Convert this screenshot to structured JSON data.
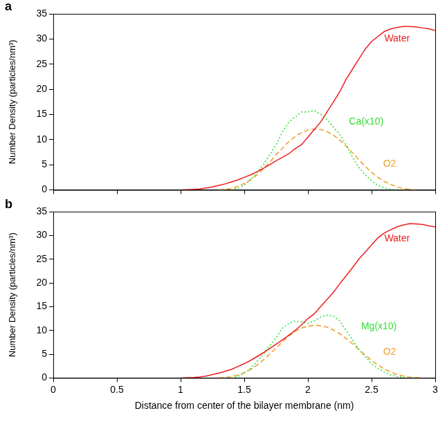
{
  "chart_data": [
    {
      "type": "line",
      "panel_label": "a",
      "x": [
        0,
        0.05,
        0.1,
        0.15,
        0.2,
        0.25,
        0.3,
        0.35,
        0.4,
        0.45,
        0.5,
        0.55,
        0.6,
        0.65,
        0.7,
        0.75,
        0.8,
        0.85,
        0.9,
        0.95,
        1,
        1.05,
        1.1,
        1.15,
        1.2,
        1.25,
        1.3,
        1.35,
        1.4,
        1.45,
        1.5,
        1.55,
        1.6,
        1.65,
        1.7,
        1.75,
        1.8,
        1.85,
        1.9,
        1.95,
        2,
        2.05,
        2.1,
        2.15,
        2.2,
        2.25,
        2.3,
        2.35,
        2.4,
        2.45,
        2.5,
        2.55,
        2.6,
        2.65,
        2.7,
        2.75,
        2.8,
        2.85,
        2.9,
        2.95,
        3
      ],
      "xlim": [
        0,
        3
      ],
      "xticks": [
        0,
        0.5,
        1,
        1.5,
        2,
        2.5,
        3
      ],
      "ylim": [
        0,
        35
      ],
      "yticks": [
        0,
        5,
        10,
        15,
        20,
        25,
        30,
        35
      ],
      "ylabel": "Number Density (particles/nm³)",
      "grid": false,
      "tick_labels": "y",
      "series": [
        {
          "name": "Water",
          "color": "#ee1c1c",
          "line_style": "solid",
          "marker": "none",
          "values": [
            null,
            null,
            null,
            null,
            null,
            null,
            null,
            null,
            null,
            null,
            null,
            null,
            null,
            null,
            null,
            null,
            null,
            null,
            null,
            null,
            0,
            0.05,
            0.1,
            0.2,
            0.4,
            0.6,
            0.9,
            1.2,
            1.6,
            2.0,
            2.5,
            3.0,
            3.6,
            4.3,
            5.0,
            5.8,
            6.5,
            7.2,
            8.2,
            9.0,
            10.5,
            12,
            13.5,
            15.5,
            17.5,
            19.5,
            22,
            24,
            26,
            28,
            29.5,
            30.5,
            31.5,
            32,
            32.3,
            32.5,
            32.5,
            32.4,
            32.2,
            32,
            31.7
          ]
        },
        {
          "name": "Ca(x10)",
          "color": "#33dd33",
          "line_style": "dotted",
          "marker": "none",
          "values": [
            null,
            null,
            null,
            null,
            null,
            null,
            null,
            null,
            null,
            null,
            null,
            null,
            null,
            null,
            null,
            null,
            null,
            null,
            null,
            null,
            null,
            null,
            null,
            null,
            null,
            null,
            null,
            null,
            0,
            0.3,
            1,
            2,
            3.5,
            5,
            7,
            9,
            11.5,
            13.5,
            14.5,
            15.5,
            15.5,
            15.8,
            15,
            14,
            12.5,
            11,
            9,
            6.5,
            4.5,
            3,
            1.8,
            0.9,
            0.4,
            0.1,
            0,
            null,
            null,
            null,
            null,
            null,
            null
          ]
        },
        {
          "name": "O2",
          "color": "#f0a030",
          "line_style": "dashed",
          "marker": "none",
          "values": [
            null,
            null,
            null,
            null,
            null,
            null,
            null,
            null,
            null,
            null,
            null,
            null,
            null,
            null,
            null,
            null,
            null,
            null,
            null,
            null,
            null,
            null,
            null,
            null,
            null,
            null,
            0,
            0.1,
            0.3,
            0.7,
            1.3,
            2,
            3,
            4.2,
            5.5,
            7,
            8.3,
            9.6,
            10.6,
            11.4,
            11.9,
            12.1,
            12.0,
            11.6,
            10.9,
            9.9,
            8.7,
            7.4,
            6,
            4.7,
            3.5,
            2.5,
            1.7,
            1.1,
            0.6,
            0.3,
            0.1,
            0,
            null,
            null,
            null
          ]
        }
      ]
    },
    {
      "type": "line",
      "panel_label": "b",
      "x": [
        0,
        0.05,
        0.1,
        0.15,
        0.2,
        0.25,
        0.3,
        0.35,
        0.4,
        0.45,
        0.5,
        0.55,
        0.6,
        0.65,
        0.7,
        0.75,
        0.8,
        0.85,
        0.9,
        0.95,
        1,
        1.05,
        1.1,
        1.15,
        1.2,
        1.25,
        1.3,
        1.35,
        1.4,
        1.45,
        1.5,
        1.55,
        1.6,
        1.65,
        1.7,
        1.75,
        1.8,
        1.85,
        1.9,
        1.95,
        2,
        2.05,
        2.1,
        2.15,
        2.2,
        2.25,
        2.3,
        2.35,
        2.4,
        2.45,
        2.5,
        2.55,
        2.6,
        2.65,
        2.7,
        2.75,
        2.8,
        2.85,
        2.9,
        2.95,
        3
      ],
      "xlim": [
        0,
        3
      ],
      "xticks": [
        0,
        0.5,
        1,
        1.5,
        2,
        2.5,
        3
      ],
      "ylim": [
        0,
        35
      ],
      "yticks": [
        0,
        5,
        10,
        15,
        20,
        25,
        30,
        35
      ],
      "xlabel": "Distance from center of the bilayer membrane (nm)",
      "ylabel": "Number Density (particles/nm³)",
      "grid": false,
      "series": [
        {
          "name": "Water",
          "color": "#ee1c1c",
          "line_style": "solid",
          "marker": "none",
          "values": [
            null,
            null,
            null,
            null,
            null,
            null,
            null,
            null,
            null,
            null,
            null,
            null,
            null,
            null,
            null,
            null,
            null,
            null,
            null,
            null,
            0,
            0.05,
            0.1,
            0.2,
            0.4,
            0.7,
            1.0,
            1.4,
            1.8,
            2.4,
            3.0,
            3.7,
            4.5,
            5.3,
            6.2,
            7.1,
            8.0,
            9.0,
            10.0,
            11.2,
            12.5,
            13.5,
            15,
            16.5,
            18,
            19.8,
            21.5,
            23.2,
            25,
            26.5,
            28,
            29.5,
            30.5,
            31.2,
            31.8,
            32.2,
            32.5,
            32.4,
            32.3,
            32,
            31.8
          ]
        },
        {
          "name": "Mg(x10)",
          "color": "#33dd33",
          "line_style": "dotted",
          "marker": "none",
          "values": [
            null,
            null,
            null,
            null,
            null,
            null,
            null,
            null,
            null,
            null,
            null,
            null,
            null,
            null,
            null,
            null,
            null,
            null,
            null,
            null,
            null,
            null,
            null,
            null,
            null,
            null,
            null,
            null,
            0,
            0.3,
            1,
            2,
            3.5,
            5,
            6.8,
            8.5,
            10.5,
            11.5,
            12,
            11.8,
            11.5,
            12,
            12.8,
            13.2,
            13,
            12,
            10,
            8,
            6,
            4.5,
            3,
            2,
            1.2,
            0.6,
            0.3,
            0.1,
            0,
            null,
            null,
            null,
            null
          ]
        },
        {
          "name": "O2",
          "color": "#f0a030",
          "line_style": "dashed",
          "marker": "none",
          "values": [
            null,
            null,
            null,
            null,
            null,
            null,
            null,
            null,
            null,
            null,
            null,
            null,
            null,
            null,
            null,
            null,
            null,
            null,
            null,
            null,
            null,
            null,
            null,
            null,
            null,
            null,
            0,
            0.1,
            0.3,
            0.6,
            1.1,
            1.8,
            2.7,
            3.8,
            5,
            6.3,
            7.6,
            8.8,
            9.8,
            10.5,
            10.9,
            11.1,
            11.0,
            10.7,
            10.1,
            9.3,
            8.3,
            7.2,
            6,
            4.8,
            3.7,
            2.7,
            1.9,
            1.2,
            0.7,
            0.4,
            0.2,
            0.1,
            0,
            null,
            null
          ]
        }
      ]
    }
  ]
}
